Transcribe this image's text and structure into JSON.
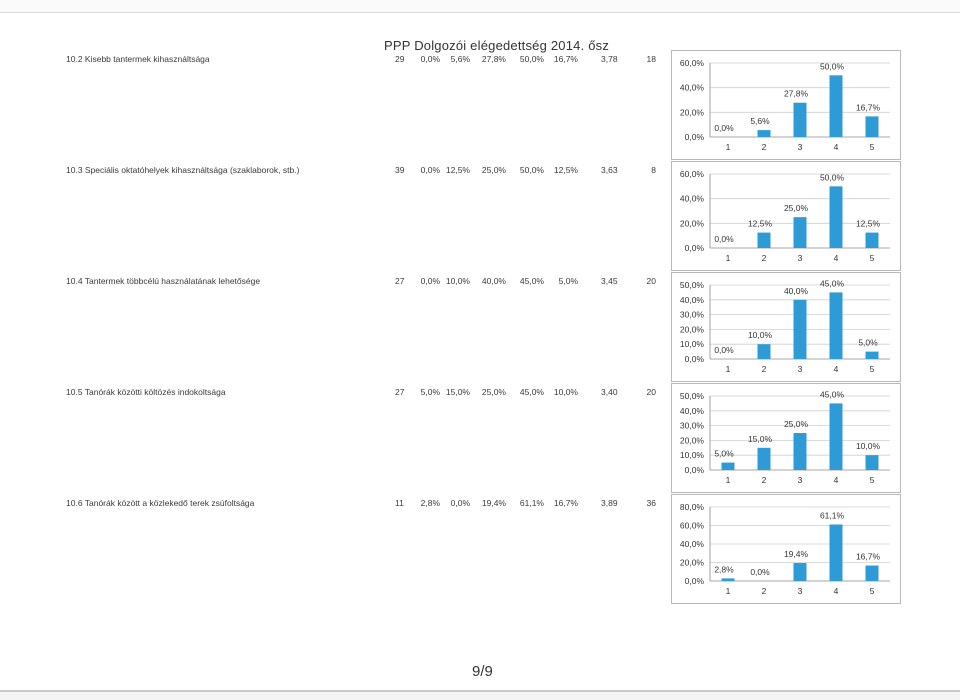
{
  "title": "PPP Dolgozói elégedettség 2014. ősz",
  "page_number": "9/9",
  "colors": {
    "bar": "#2e9bd6",
    "grid": "#cfcfcf",
    "axis": "#8a8a8a",
    "text": "#333333"
  },
  "rows": [
    {
      "label": "10.2 Kisebb tantermek kihasználtsága",
      "n": "29",
      "percents": [
        "0,0%",
        "5,6%",
        "27,8%",
        "50,0%",
        "16,7%"
      ],
      "avg": "3,78",
      "count": "18"
    },
    {
      "label": "10.3 Speciális oktatóhelyek kihasználtsága (szaklaborok, stb.)",
      "n": "39",
      "percents": [
        "0,0%",
        "12,5%",
        "25,0%",
        "50,0%",
        "12,5%"
      ],
      "avg": "3,63",
      "count": "8"
    },
    {
      "label": "10.4 Tantermek többcélú használatának lehetősége",
      "n": "27",
      "percents": [
        "0,0%",
        "10,0%",
        "40,0%",
        "45,0%",
        "5,0%"
      ],
      "avg": "3,45",
      "count": "20"
    },
    {
      "label": "10.5 Tanórák közötti költözés indokoltsága",
      "n": "27",
      "percents": [
        "5,0%",
        "15,0%",
        "25,0%",
        "45,0%",
        "10,0%"
      ],
      "avg": "3,40",
      "count": "20"
    },
    {
      "label": "10.6 Tanórák között a közlekedő terek zsúfoltsága",
      "n": "11",
      "percents": [
        "2,8%",
        "0,0%",
        "19,4%",
        "61,1%",
        "16,7%"
      ],
      "avg": "3,89",
      "count": "36"
    }
  ],
  "chart_data": [
    {
      "type": "bar",
      "categories": [
        "1",
        "2",
        "3",
        "4",
        "5"
      ],
      "values": [
        0.0,
        5.6,
        27.8,
        50.0,
        16.7
      ],
      "data_labels": [
        "0,0%",
        "5,6%",
        "27,8%",
        "50,0%",
        "16,7%"
      ],
      "ylim": [
        0,
        60
      ],
      "yticks": [
        0,
        20,
        40,
        60
      ],
      "ytick_labels": [
        "0,0%",
        "20,0%",
        "40,0%",
        "60,0%"
      ],
      "grid": true
    },
    {
      "type": "bar",
      "categories": [
        "1",
        "2",
        "3",
        "4",
        "5"
      ],
      "values": [
        0.0,
        12.5,
        25.0,
        50.0,
        12.5
      ],
      "data_labels": [
        "0,0%",
        "12,5%",
        "25,0%",
        "50,0%",
        "12,5%"
      ],
      "ylim": [
        0,
        60
      ],
      "yticks": [
        0,
        20,
        40,
        60
      ],
      "ytick_labels": [
        "0,0%",
        "20,0%",
        "40,0%",
        "60,0%"
      ],
      "grid": true
    },
    {
      "type": "bar",
      "categories": [
        "1",
        "2",
        "3",
        "4",
        "5"
      ],
      "values": [
        0.0,
        10.0,
        40.0,
        45.0,
        5.0
      ],
      "data_labels": [
        "0,0%",
        "10,0%",
        "40,0%",
        "45,0%",
        "5,0%"
      ],
      "ylim": [
        0,
        50
      ],
      "yticks": [
        0,
        10,
        20,
        30,
        40,
        50
      ],
      "ytick_labels": [
        "0,0%",
        "10,0%",
        "20,0%",
        "30,0%",
        "40,0%",
        "50,0%"
      ],
      "grid": true
    },
    {
      "type": "bar",
      "categories": [
        "1",
        "2",
        "3",
        "4",
        "5"
      ],
      "values": [
        5.0,
        15.0,
        25.0,
        45.0,
        10.0
      ],
      "data_labels": [
        "5,0%",
        "15,0%",
        "25,0%",
        "45,0%",
        "10,0%"
      ],
      "ylim": [
        0,
        50
      ],
      "yticks": [
        0,
        10,
        20,
        30,
        40,
        50
      ],
      "ytick_labels": [
        "0,0%",
        "10,0%",
        "20,0%",
        "30,0%",
        "40,0%",
        "50,0%"
      ],
      "grid": true
    },
    {
      "type": "bar",
      "categories": [
        "1",
        "2",
        "3",
        "4",
        "5"
      ],
      "values": [
        2.8,
        0.0,
        19.4,
        61.1,
        16.7
      ],
      "data_labels": [
        "2,8%",
        "0,0%",
        "19,4%",
        "61,1%",
        "16,7%"
      ],
      "ylim": [
        0,
        80
      ],
      "yticks": [
        0,
        20,
        40,
        60,
        80
      ],
      "ytick_labels": [
        "0,0%",
        "20,0%",
        "40,0%",
        "60,0%",
        "80,0%"
      ],
      "grid": true
    }
  ]
}
